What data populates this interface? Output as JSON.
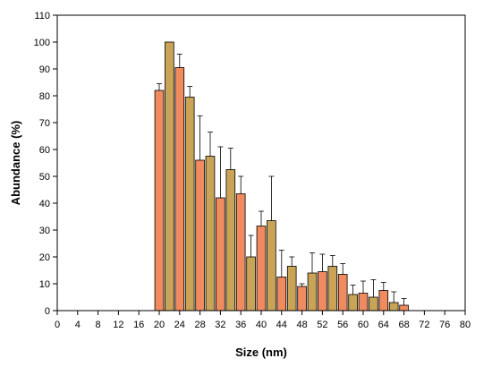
{
  "chart_data": {
    "type": "bar",
    "xlabel": "Size (nm)",
    "ylabel": "Abundance (%)",
    "xlim": [
      0,
      80
    ],
    "ylim": [
      0,
      110
    ],
    "xticks": [
      0,
      4,
      8,
      12,
      16,
      20,
      24,
      28,
      32,
      36,
      40,
      44,
      48,
      52,
      56,
      60,
      64,
      68,
      72,
      76,
      80
    ],
    "yticks": [
      0,
      10,
      20,
      30,
      40,
      50,
      60,
      70,
      80,
      90,
      100,
      110
    ],
    "grid": false,
    "colors": {
      "odd_bar": "#f08a5f",
      "even_bar": "#c9a456"
    },
    "x": [
      20,
      22,
      24,
      26,
      28,
      30,
      32,
      34,
      36,
      38,
      40,
      42,
      44,
      46,
      48,
      50,
      52,
      54,
      56,
      58,
      60,
      62,
      64,
      66,
      68
    ],
    "values": [
      82,
      100,
      90.5,
      79.5,
      56,
      57.5,
      42,
      52.5,
      43.5,
      20,
      31.5,
      33.5,
      12.5,
      16.5,
      9,
      14,
      14.5,
      16.5,
      13.5,
      6,
      6.5,
      5,
      7.5,
      3,
      2
    ],
    "errors": [
      2.5,
      0,
      5,
      4,
      16.5,
      9,
      19,
      8,
      6.5,
      8,
      5.5,
      16.5,
      10,
      3.5,
      1,
      7.5,
      6.5,
      4,
      4,
      3.5,
      4.5,
      6.5,
      3,
      4,
      2.5
    ]
  }
}
